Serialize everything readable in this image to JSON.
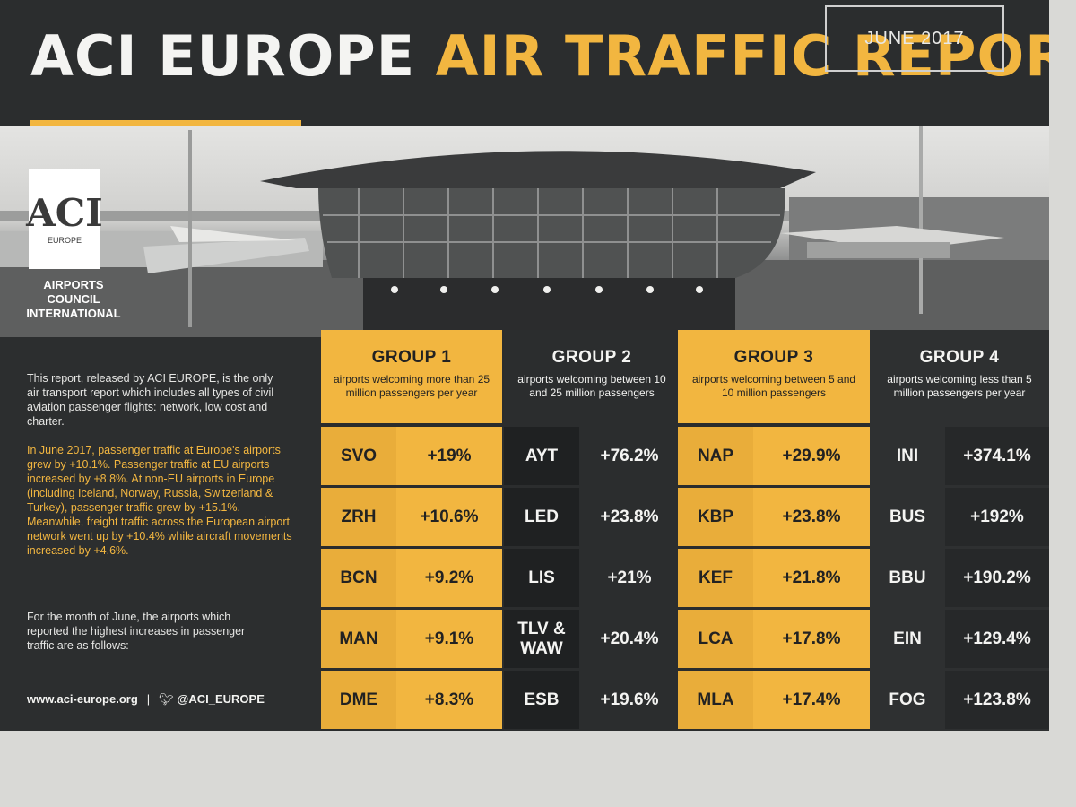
{
  "header": {
    "title_part1": "ACI EUROPE",
    "title_part2": "AIR TRAFFIC REPORT",
    "date": "JUNE 2017"
  },
  "logo": {
    "mark": "ACI",
    "sub": "EUROPE",
    "org": "AIRPORTS COUNCIL INTERNATIONAL"
  },
  "left_panel": {
    "intro": "This report, released by ACI EUROPE, is the only air transport report which includes all types of civil aviation passenger flights: network, low cost and charter.",
    "highlight": "In June 2017, passenger traffic at Europe's airports grew by +10.1%. Passenger traffic at EU airports increased by +8.8%. At non-EU airports in Europe (including Iceland, Norway, Russia, Switzerland & Turkey), passenger traffic grew by +15.1%. Meanwhile, freight traffic across the European airport network went up by +10.4% while aircraft movements increased by +4.6%.",
    "closing": "For the month of June, the airports which reported the highest increases in passenger traffic are as follows:",
    "website": "www.aci-europe.org",
    "separator": "|",
    "twitter": "@ACI_EUROPE"
  },
  "groups": [
    {
      "title": "GROUP 1",
      "desc": "airports welcoming more than 25 million passengers per year",
      "rows": [
        {
          "code": "SVO",
          "value": "+19%"
        },
        {
          "code": "ZRH",
          "value": "+10.6%"
        },
        {
          "code": "BCN",
          "value": "+9.2%"
        },
        {
          "code": "MAN",
          "value": "+9.1%"
        },
        {
          "code": "DME",
          "value": "+8.3%"
        }
      ]
    },
    {
      "title": "GROUP 2",
      "desc": "airports welcoming between 10 and 25 million passengers",
      "rows": [
        {
          "code": "AYT",
          "value": "+76.2%"
        },
        {
          "code": "LED",
          "value": "+23.8%"
        },
        {
          "code": "LIS",
          "value": "+21%"
        },
        {
          "code": "TLV & WAW",
          "value": "+20.4%"
        },
        {
          "code": "ESB",
          "value": "+19.6%"
        }
      ]
    },
    {
      "title": "GROUP 3",
      "desc": "airports welcoming between 5 and 10 million passengers",
      "rows": [
        {
          "code": "NAP",
          "value": "+29.9%"
        },
        {
          "code": "KBP",
          "value": "+23.8%"
        },
        {
          "code": "KEF",
          "value": "+21.8%"
        },
        {
          "code": "LCA",
          "value": "+17.8%"
        },
        {
          "code": "MLA",
          "value": "+17.4%"
        }
      ]
    },
    {
      "title": "GROUP 4",
      "desc": "airports welcoming less than 5 million passengers per year",
      "rows": [
        {
          "code": "INI",
          "value": "+374.1%"
        },
        {
          "code": "BUS",
          "value": "+192%"
        },
        {
          "code": "BBU",
          "value": "+190.2%"
        },
        {
          "code": "EIN",
          "value": "+129.4%"
        },
        {
          "code": "FOG",
          "value": "+123.8%"
        }
      ]
    }
  ],
  "colors": {
    "accent": "#f2b640",
    "dark": "#2b2d2e",
    "text_light": "#f4f4f2"
  }
}
